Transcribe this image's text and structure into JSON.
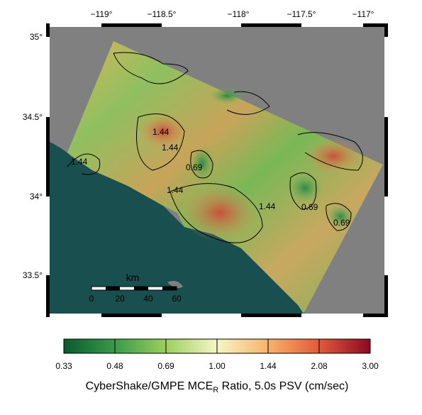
{
  "map": {
    "lon_labels": [
      "−119°",
      "−118.5°",
      "−118°",
      "−117.5°",
      "−117°"
    ],
    "lat_labels": [
      "35°",
      "34.5°",
      "34°",
      "33.5°"
    ],
    "scale_bar": {
      "unit": "km",
      "ticks": [
        "0",
        "20",
        "40",
        "60"
      ]
    },
    "contour_labels": [
      "1.44",
      "1.44",
      "1.44",
      "0.69",
      "1.44",
      "0.69",
      "0.69",
      "1.44"
    ]
  },
  "colorbar": {
    "ticks": [
      "0.33",
      "0.48",
      "0.69",
      "1.00",
      "1.44",
      "2.08",
      "3.00"
    ],
    "label_prefix": "CyberShake/GMPE MCE",
    "label_subscript": "R",
    "label_suffix": " Ratio, 5.0s PSV (cm/sec)"
  }
}
